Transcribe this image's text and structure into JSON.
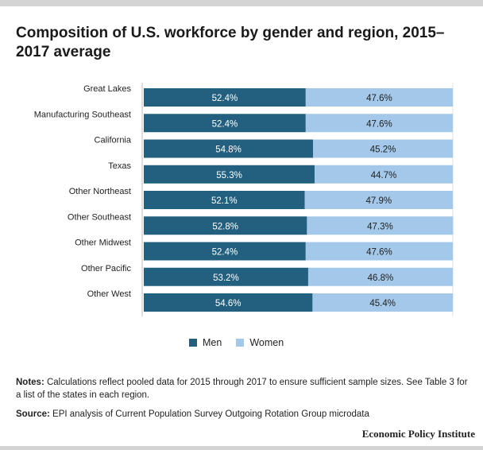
{
  "title": "Composition of U.S. workforce by gender and region, 2015–2017 average",
  "notes_label": "Notes:",
  "notes_text": " Calculations reflect pooled data for 2015 through 2017 to ensure sufficient sample sizes. See Table 3 for a list of the states in each region.",
  "source_label": "Source:",
  "source_text": " EPI analysis of Current Population Survey Outgoing Rotation Group microdata",
  "brand": "Economic Policy Institute",
  "colors": {
    "men": "#23607f",
    "women": "#a3c8e9"
  },
  "legend": [
    {
      "label": "Men",
      "color": "#23607f"
    },
    {
      "label": "Women",
      "color": "#a3c8e9"
    }
  ],
  "chart_data": {
    "type": "bar",
    "orientation": "horizontal",
    "stacked": true,
    "categories": [
      "Great Lakes",
      "Manufacturing Southeast",
      "California",
      "Texas",
      "Other Northeast",
      "Other Southeast",
      "Other Midwest",
      "Other Pacific",
      "Other West"
    ],
    "series": [
      {
        "name": "Men",
        "values": [
          52.4,
          52.4,
          54.8,
          55.3,
          52.1,
          52.8,
          52.4,
          53.2,
          54.6
        ]
      },
      {
        "name": "Women",
        "values": [
          47.6,
          47.6,
          45.2,
          44.7,
          47.9,
          47.3,
          47.6,
          46.8,
          45.4
        ]
      }
    ],
    "value_labels": {
      "Men": [
        "52.4%",
        "52.4%",
        "54.8%",
        "55.3%",
        "52.1%",
        "52.8%",
        "52.4%",
        "53.2%",
        "54.6%"
      ],
      "Women": [
        "47.6%",
        "47.6%",
        "45.2%",
        "44.7%",
        "47.9%",
        "47.3%",
        "47.6%",
        "46.8%",
        "45.4%"
      ]
    },
    "xlim": [
      0,
      100
    ],
    "legend_position": "bottom"
  }
}
